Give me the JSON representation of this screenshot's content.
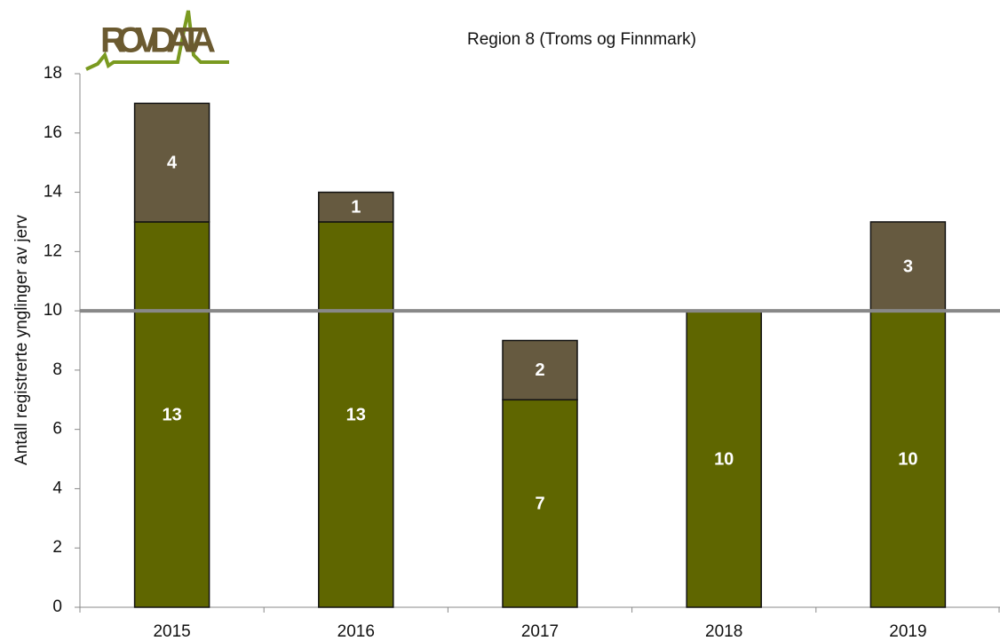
{
  "chart_data": {
    "type": "stacked_bar",
    "logo": "ROVDATA",
    "title": "Region 8 (Troms og Finnmark)",
    "y_label": "Antall registrerte ynglinger av jerv",
    "categories": [
      "2015",
      "2016",
      "2017",
      "2018",
      "2019"
    ],
    "series": [
      {
        "color": "#5f6600",
        "values": [
          13,
          13,
          7,
          10,
          10
        ]
      },
      {
        "color": "#665a40",
        "values": [
          4,
          1,
          2,
          null,
          3
        ]
      }
    ],
    "reference_line": 10,
    "ylim": [
      0,
      18
    ],
    "yticks": [
      0,
      2,
      4,
      6,
      8,
      10,
      12,
      14,
      16,
      18
    ]
  }
}
